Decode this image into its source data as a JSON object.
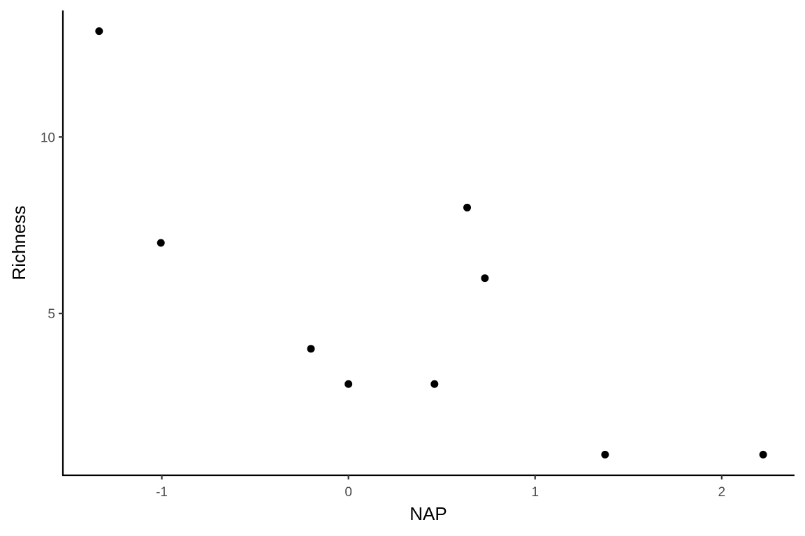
{
  "chart_data": {
    "type": "scatter",
    "title": "",
    "xlabel": "NAP",
    "ylabel": "Richness",
    "xlim": [
      -1.53,
      2.39
    ],
    "ylim": [
      0.415,
      13.585
    ],
    "x_ticks": [
      -1,
      0,
      1,
      2
    ],
    "y_ticks": [
      5,
      10
    ],
    "x_tick_labels": [
      "-1",
      "0",
      "1",
      "2"
    ],
    "y_tick_labels": [
      "5",
      "10"
    ],
    "grid": false,
    "point_color": "#000000",
    "series": [
      {
        "x": [
          -1.336,
          -1.005,
          -0.201,
          0.0,
          0.461,
          0.636,
          0.731,
          1.375,
          2.222
        ],
        "y": [
          13,
          7,
          4,
          3,
          3,
          8,
          6,
          1,
          1
        ]
      }
    ]
  }
}
